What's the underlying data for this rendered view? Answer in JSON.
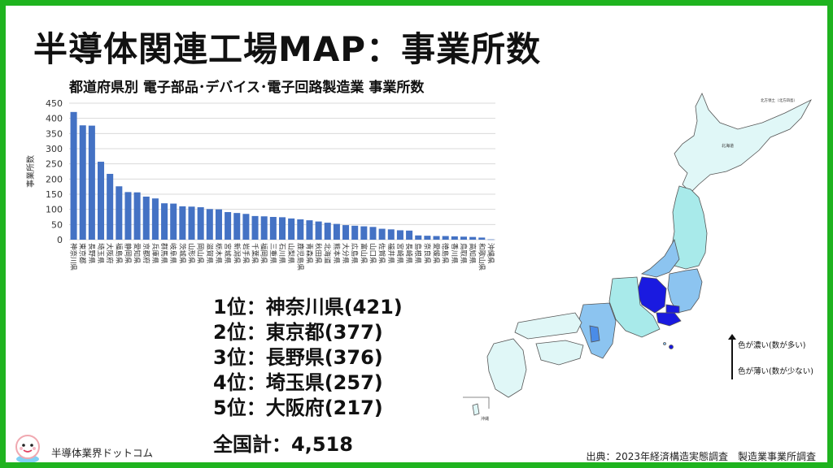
{
  "title": "半導体関連工場MAP：事業所数",
  "subtitle": "都道府県別 電子部品･デバイス･電子回路製造業 事業所数",
  "ranking": [
    "1位：神奈川県(421)",
    "2位：東京都(377)",
    "3位：長野県(376)",
    "4位：埼玉県(257)",
    "5位：大阪府(217)"
  ],
  "total": "全国計：4,518",
  "brand": "半導体業界ドットコム",
  "source": "出典：2023年経済構造実態調査　製造業事業所調査",
  "legend": {
    "top": "色が濃い(数が多い)",
    "bottom": "色が薄い(数が少ない)"
  },
  "map_labels": {
    "hokkaido": "北海道",
    "northern_territories": "北方領土（北方四島）",
    "okinawa": "沖縄"
  },
  "colors": {
    "border": "#1fb31f",
    "bar": "#4472c4",
    "map_light": "#e0f7f7",
    "map_mid": "#a8eaea",
    "map_blue": "#8cc4f0",
    "map_dark": "#1a1ae0"
  },
  "chart_data": {
    "type": "bar",
    "ylabel": "事業所数",
    "ylim": [
      0,
      450
    ],
    "yticks": [
      0,
      50,
      100,
      150,
      200,
      250,
      300,
      350,
      400,
      450
    ],
    "grid": true,
    "categories": [
      "神奈川県",
      "東京都",
      "長野県",
      "埼玉県",
      "大阪府",
      "福島県",
      "静岡県",
      "愛知県",
      "京都府",
      "兵庫県",
      "群馬県",
      "岐阜県",
      "茨城県",
      "山形県",
      "岡山県",
      "滋賀県",
      "栃木県",
      "宮城県",
      "新潟県",
      "岩手県",
      "千葉県",
      "福岡県",
      "三重県",
      "石川県",
      "山梨県",
      "鹿児島県",
      "青森県",
      "秋田県",
      "北海道",
      "熊本県",
      "大分県",
      "広島県",
      "富山県",
      "山口県",
      "佐賀県",
      "福井県",
      "宮崎県",
      "長崎県",
      "島根県",
      "奈良県",
      "愛媛県",
      "徳島県",
      "香川県",
      "鳥取県",
      "高知県",
      "和歌山県",
      "沖縄県"
    ],
    "values": [
      421,
      377,
      376,
      257,
      217,
      176,
      157,
      156,
      142,
      136,
      120,
      119,
      110,
      109,
      107,
      101,
      100,
      91,
      88,
      85,
      78,
      77,
      75,
      74,
      70,
      67,
      64,
      60,
      56,
      52,
      48,
      46,
      44,
      42,
      36,
      34,
      31,
      30,
      14,
      13,
      12,
      12,
      11,
      10,
      9,
      7,
      1
    ]
  }
}
